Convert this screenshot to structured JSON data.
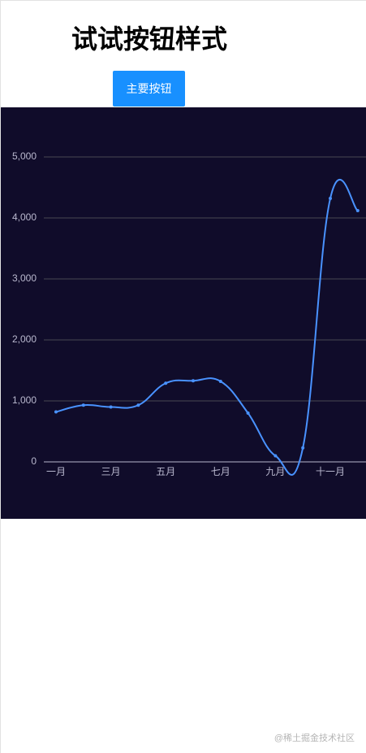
{
  "page": {
    "heading": "试试按钮样式",
    "button": "主要按钮",
    "watermark": "@稀土掘金技术社区"
  },
  "chart_data": {
    "type": "line",
    "categories": [
      "一月",
      null,
      "三月",
      null,
      "五月",
      null,
      "七月",
      null,
      "九月",
      null,
      "十一月",
      null
    ],
    "series": [
      {
        "color": "#4992ff",
        "values": [
          820,
          930,
          900,
          930,
          1290,
          1330,
          1320,
          800,
          100,
          230,
          4320,
          4120
        ]
      }
    ],
    "ylim": [
      0,
      5000
    ],
    "yticks": [
      0,
      {
        "value": 1000,
        "label": "1,000"
      },
      {
        "value": 2000,
        "label": "2,000"
      },
      {
        "value": 3000,
        "label": "3,000"
      },
      {
        "value": 4000,
        "label": "4,000"
      },
      {
        "value": 5000,
        "label": "5,000"
      }
    ],
    "grid": true,
    "smooth": true,
    "background": "#100c2a"
  }
}
